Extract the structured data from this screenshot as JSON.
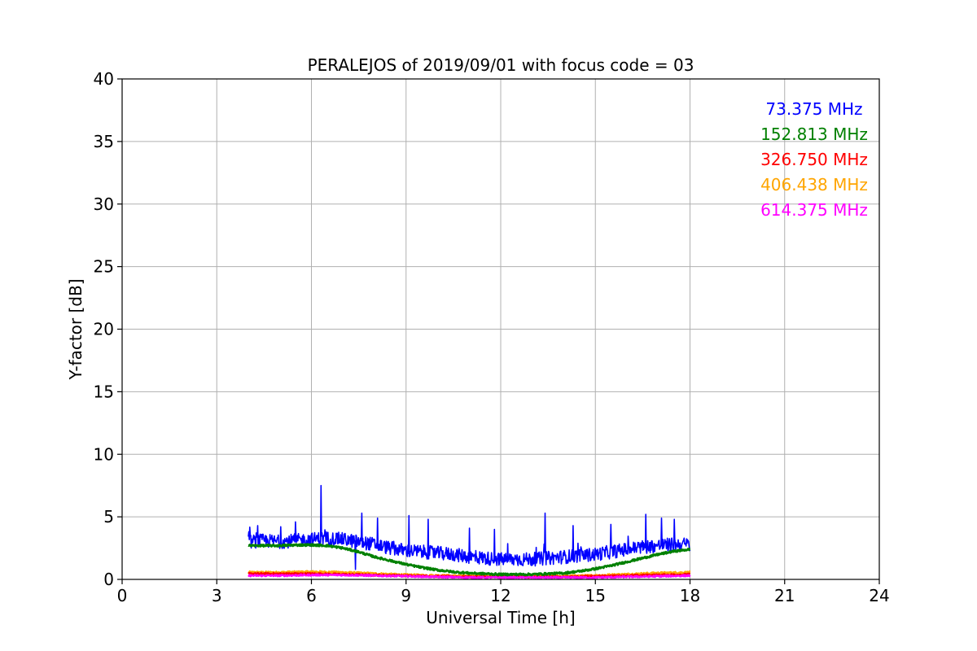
{
  "chart_data": {
    "type": "line",
    "title": "PERALEJOS of 2019/09/01 with focus code = 03",
    "xlabel": "Universal Time [h]",
    "ylabel": "Y-factor [dB]",
    "xlim": [
      0,
      24
    ],
    "ylim": [
      0,
      40
    ],
    "xticks": [
      0,
      3,
      6,
      9,
      12,
      15,
      18,
      21,
      24
    ],
    "yticks": [
      0,
      5,
      10,
      15,
      20,
      25,
      30,
      35,
      40
    ],
    "grid": true,
    "legend_position": "top-right",
    "series": [
      {
        "name": "73.375 MHz",
        "color": "#0000ff",
        "x": [
          4.0,
          4.5,
          5.0,
          5.5,
          6.0,
          6.5,
          7.0,
          7.5,
          8.0,
          8.5,
          9.0,
          9.5,
          10.0,
          10.5,
          11.0,
          11.5,
          12.0,
          12.5,
          13.0,
          13.5,
          14.0,
          14.5,
          15.0,
          15.5,
          16.0,
          16.5,
          17.0,
          17.5,
          18.0
        ],
        "y": [
          3.0,
          3.1,
          3.0,
          3.1,
          3.2,
          3.3,
          3.2,
          3.0,
          2.8,
          2.5,
          2.3,
          2.2,
          2.1,
          2.0,
          1.8,
          1.7,
          1.6,
          1.6,
          1.6,
          1.7,
          1.8,
          1.9,
          2.0,
          2.2,
          2.4,
          2.6,
          2.7,
          2.8,
          2.8
        ],
        "spikes": [
          [
            4.3,
            4.3
          ],
          [
            5.5,
            4.6
          ],
          [
            6.3,
            7.5
          ],
          [
            7.4,
            0.8
          ],
          [
            7.6,
            5.3
          ],
          [
            8.1,
            4.9
          ],
          [
            9.1,
            5.1
          ],
          [
            9.7,
            4.8
          ],
          [
            11.0,
            4.1
          ],
          [
            11.8,
            4.0
          ],
          [
            13.4,
            5.3
          ],
          [
            14.3,
            4.3
          ],
          [
            15.5,
            4.4
          ],
          [
            16.6,
            5.2
          ],
          [
            17.1,
            4.9
          ],
          [
            17.5,
            4.8
          ]
        ]
      },
      {
        "name": "152.813 MHz",
        "color": "#008000",
        "x": [
          4.0,
          4.5,
          5.0,
          5.5,
          6.0,
          6.5,
          7.0,
          7.5,
          8.0,
          8.5,
          9.0,
          9.5,
          10.0,
          10.5,
          11.0,
          11.5,
          12.0,
          12.5,
          13.0,
          13.5,
          14.0,
          14.5,
          15.0,
          15.5,
          16.0,
          16.5,
          17.0,
          17.5,
          18.0
        ],
        "y": [
          2.7,
          2.7,
          2.7,
          2.75,
          2.75,
          2.7,
          2.5,
          2.2,
          1.8,
          1.5,
          1.2,
          0.95,
          0.75,
          0.6,
          0.5,
          0.45,
          0.4,
          0.4,
          0.4,
          0.45,
          0.5,
          0.65,
          0.85,
          1.1,
          1.4,
          1.7,
          2.0,
          2.25,
          2.4
        ]
      },
      {
        "name": "326.750 MHz",
        "color": "#ff0000",
        "x": [
          4.0,
          5.0,
          6.0,
          7.0,
          8.0,
          9.0,
          10.0,
          11.0,
          12.0,
          13.0,
          14.0,
          15.0,
          16.0,
          17.0,
          18.0
        ],
        "y": [
          0.45,
          0.45,
          0.45,
          0.4,
          0.35,
          0.3,
          0.25,
          0.2,
          0.2,
          0.2,
          0.2,
          0.25,
          0.3,
          0.35,
          0.4
        ]
      },
      {
        "name": "406.438 MHz",
        "color": "#ffa500",
        "x": [
          4.0,
          5.0,
          6.0,
          7.0,
          8.0,
          9.0,
          10.0,
          11.0,
          12.0,
          13.0,
          14.0,
          15.0,
          16.0,
          17.0,
          18.0
        ],
        "y": [
          0.55,
          0.55,
          0.6,
          0.55,
          0.45,
          0.35,
          0.3,
          0.25,
          0.25,
          0.25,
          0.25,
          0.3,
          0.4,
          0.5,
          0.55
        ]
      },
      {
        "name": "614.375 MHz",
        "color": "#ff00ff",
        "x": [
          4.0,
          5.0,
          6.0,
          7.0,
          8.0,
          9.0,
          10.0,
          11.0,
          12.0,
          13.0,
          14.0,
          15.0,
          16.0,
          17.0,
          18.0
        ],
        "y": [
          0.3,
          0.3,
          0.35,
          0.35,
          0.3,
          0.25,
          0.2,
          0.15,
          0.15,
          0.15,
          0.15,
          0.15,
          0.2,
          0.25,
          0.3
        ]
      }
    ]
  }
}
